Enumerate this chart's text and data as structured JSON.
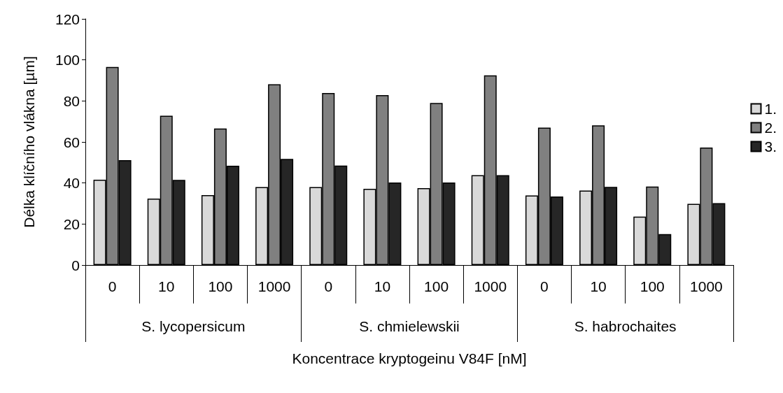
{
  "chart_data": {
    "type": "bar",
    "xlabel": "Koncentrace kryptogeinu V84F [nM]",
    "ylabel": "Délka klíčního vlákna [µm]",
    "categories": [
      "0",
      "10",
      "100",
      "1000",
      "0",
      "10",
      "100",
      "1000",
      "0",
      "10",
      "100",
      "1000"
    ],
    "annotations": [
      "S. lycopersicum",
      "S. chmielewskii",
      "S. habrochaites"
    ],
    "series": [
      {
        "name": "1.",
        "color": "#d9d9d9",
        "values": [
          41.6,
          32.4,
          34.1,
          38.0,
          38.0,
          37.2,
          37.5,
          43.8,
          33.9,
          36.3,
          23.6,
          29.8
        ]
      },
      {
        "name": "2.",
        "color": "#808080",
        "values": [
          96.6,
          72.8,
          66.6,
          88.1,
          83.9,
          82.8,
          79.0,
          92.5,
          67.0,
          68.1,
          38.3,
          57.3
        ]
      },
      {
        "name": "3.",
        "color": "#262626",
        "values": [
          51.1,
          41.5,
          48.4,
          51.7,
          48.5,
          40.2,
          40.2,
          43.8,
          33.4,
          38.1,
          15.1,
          30.2
        ]
      }
    ],
    "ylim": [
      0,
      120
    ],
    "yticks": [
      0,
      20,
      40,
      60,
      80,
      100,
      120
    ],
    "grid": false,
    "legend": "right"
  }
}
